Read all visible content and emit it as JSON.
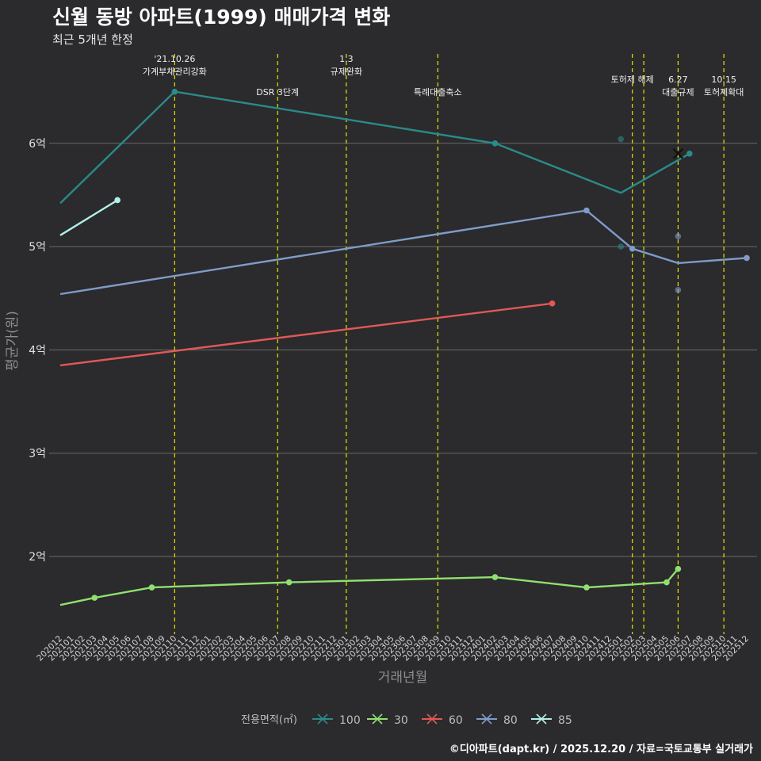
{
  "header": {
    "title": "신월 동방 아파트(1999) 매매가격 변화",
    "subtitle": "최근 5개년 한정"
  },
  "caption": "©디아파트(dapt.kr) / 2025.12.20 / 자료=국토교통부 실거래가",
  "colors": {
    "background": "#2b2a2c",
    "grid": "#6a6a6a",
    "event_line": "#e5e500",
    "100": "#2b8a8a",
    "30": "#90e070",
    "60": "#e05858",
    "80": "#7f9cc9",
    "85": "#b0f0e8"
  },
  "chart_data": {
    "type": "line",
    "title": "신월 동방 아파트(1999) 매매가격 변화",
    "subtitle": "최근 5개년 한정",
    "xlabel": "거래년월",
    "ylabel": "평균가(원)",
    "y_unit": "억",
    "ylim": [
      1.3,
      7.0
    ],
    "y_ticks": [
      2,
      3,
      4,
      5,
      6
    ],
    "y_tick_labels": [
      "2억",
      "3억",
      "4억",
      "5억",
      "6억"
    ],
    "x_categories": [
      "202012",
      "202101",
      "202102",
      "202103",
      "202104",
      "202105",
      "202106",
      "202107",
      "202108",
      "202109",
      "202110",
      "202111",
      "202112",
      "202201",
      "202202",
      "202203",
      "202204",
      "202205",
      "202206",
      "202207",
      "202208",
      "202209",
      "202210",
      "202211",
      "202212",
      "202301",
      "202302",
      "202303",
      "202304",
      "202305",
      "202306",
      "202307",
      "202308",
      "202309",
      "202310",
      "202311",
      "202312",
      "202401",
      "202402",
      "202403",
      "202404",
      "202405",
      "202406",
      "202407",
      "202408",
      "202409",
      "202410",
      "202411",
      "202412",
      "202501",
      "202502",
      "202503",
      "202504",
      "202505",
      "202506",
      "202507",
      "202508",
      "202509",
      "202510",
      "202511",
      "202512"
    ],
    "legend_title": "전용면적(㎡)",
    "legend_position": "bottom",
    "series": [
      {
        "name": "100",
        "color": "#2b8a8a",
        "line": [
          [
            "202012",
            5.42
          ],
          [
            "202110",
            6.5
          ],
          [
            "202402",
            6.0
          ],
          [
            "202501",
            5.52
          ],
          [
            "202507",
            5.9
          ]
        ],
        "points": [
          [
            "202110",
            6.5
          ],
          [
            "202402",
            6.0
          ],
          [
            "202507",
            5.9
          ]
        ]
      },
      {
        "name": "30",
        "color": "#90e070",
        "line": [
          [
            "202012",
            1.53
          ],
          [
            "202103",
            1.6
          ],
          [
            "202108",
            1.7
          ],
          [
            "202208",
            1.75
          ],
          [
            "202402",
            1.8
          ],
          [
            "202410",
            1.7
          ],
          [
            "202505",
            1.75
          ],
          [
            "202506",
            1.88
          ]
        ],
        "points": [
          [
            "202103",
            1.6
          ],
          [
            "202108",
            1.7
          ],
          [
            "202208",
            1.75
          ],
          [
            "202402",
            1.8
          ],
          [
            "202410",
            1.7
          ],
          [
            "202505",
            1.75
          ],
          [
            "202506",
            1.88
          ]
        ]
      },
      {
        "name": "60",
        "color": "#e05858",
        "line": [
          [
            "202012",
            3.85
          ],
          [
            "202407",
            4.45
          ]
        ],
        "points": [
          [
            "202407",
            4.45
          ]
        ]
      },
      {
        "name": "80",
        "color": "#7f9cc9",
        "line": [
          [
            "202012",
            4.54
          ],
          [
            "202410",
            5.35
          ],
          [
            "202502",
            4.98
          ],
          [
            "202506",
            4.84
          ],
          [
            "202512",
            4.89
          ]
        ],
        "points": [
          [
            "202410",
            5.35
          ],
          [
            "202502",
            4.98
          ],
          [
            "202512",
            4.89
          ]
        ]
      },
      {
        "name": "85",
        "color": "#b0f0e8",
        "line": [
          [
            "202012",
            5.11
          ],
          [
            "202105",
            5.45
          ]
        ],
        "points": [
          [
            "202105",
            5.45
          ]
        ]
      }
    ],
    "scatter_points": [
      {
        "x": "202501",
        "y": 6.04,
        "color": "#2b8a8a"
      },
      {
        "x": "202501",
        "y": 5.0,
        "color": "#2b8a8a"
      },
      {
        "x": "202506",
        "y": 5.1,
        "color": "#7f9cc9"
      },
      {
        "x": "202506",
        "y": 4.58,
        "color": "#7f9cc9"
      }
    ],
    "cross_marker": {
      "x": "202506",
      "y": 5.9
    },
    "events": [
      {
        "x": "202110",
        "lines": [
          "'21.10.26",
          "가계부채관리강화"
        ],
        "level": 0
      },
      {
        "x": "202207",
        "lines": [
          "DSR 3단계"
        ],
        "level": 1
      },
      {
        "x": "202301",
        "lines": [
          "1.3",
          "규제완화"
        ],
        "level": 0
      },
      {
        "x": "202309",
        "lines": [
          "특례대출축소"
        ],
        "level": 1
      },
      {
        "x": "202502",
        "lines": [
          "토허제 해제"
        ],
        "level": 0
      },
      {
        "x": "202503",
        "lines": [],
        "level": 0
      },
      {
        "x": "202506",
        "lines": [
          "6.27",
          "대출규제"
        ],
        "level": 1
      },
      {
        "x": "202510",
        "lines": [
          "10.15",
          "토허제확대"
        ],
        "level": 1
      }
    ]
  }
}
